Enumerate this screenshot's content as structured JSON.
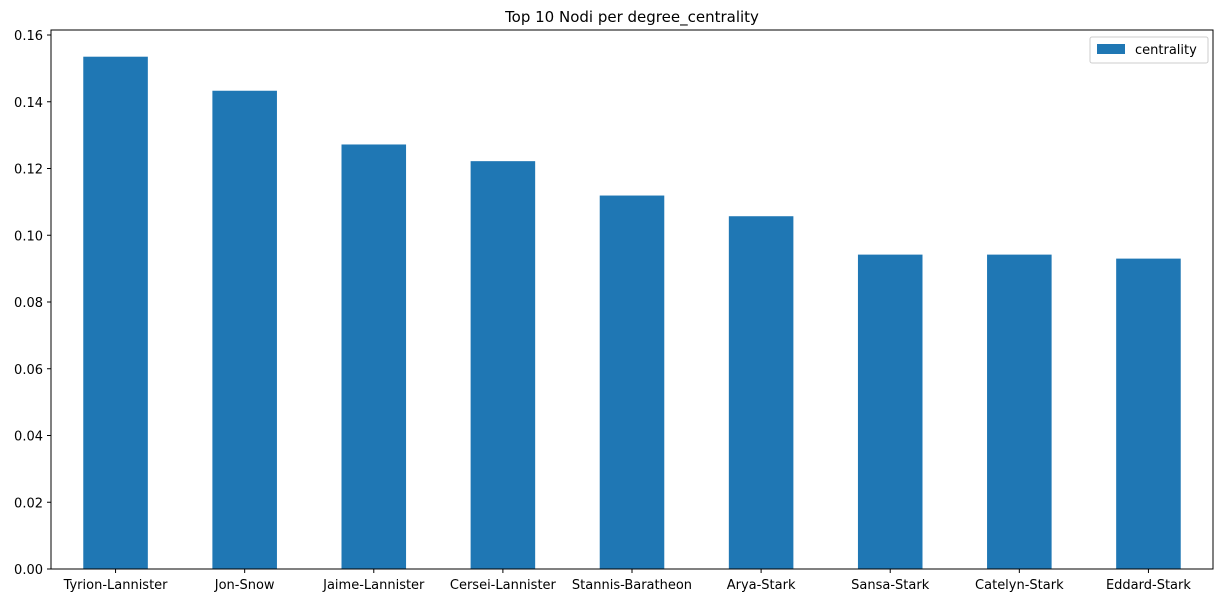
{
  "chart_data": {
    "type": "bar",
    "title": "Top 10 Nodi per degree_centrality",
    "xlabel": "",
    "ylabel": "",
    "categories": [
      "Tyrion-Lannister",
      "Jon-Snow",
      "Jaime-Lannister",
      "Cersei-Lannister",
      "Stannis-Baratheon",
      "Arya-Stark",
      "Sansa-Stark",
      "Catelyn-Stark",
      "Eddard-Stark"
    ],
    "series": [
      {
        "name": "centrality",
        "color": "#1f77b4",
        "values": [
          0.1535,
          0.1433,
          0.1272,
          0.1222,
          0.1119,
          0.1057,
          0.0942,
          0.0942,
          0.093
        ]
      }
    ],
    "ylim": [
      0,
      0.1615
    ],
    "yticks": [
      0.0,
      0.02,
      0.04,
      0.06,
      0.08,
      0.1,
      0.12,
      0.14,
      0.16
    ],
    "ytick_labels": [
      "0.00",
      "0.02",
      "0.04",
      "0.06",
      "0.08",
      "0.10",
      "0.12",
      "0.14",
      "0.16"
    ],
    "legend": {
      "placement": "top-right",
      "entries": [
        "centrality"
      ]
    },
    "grid": false
  }
}
